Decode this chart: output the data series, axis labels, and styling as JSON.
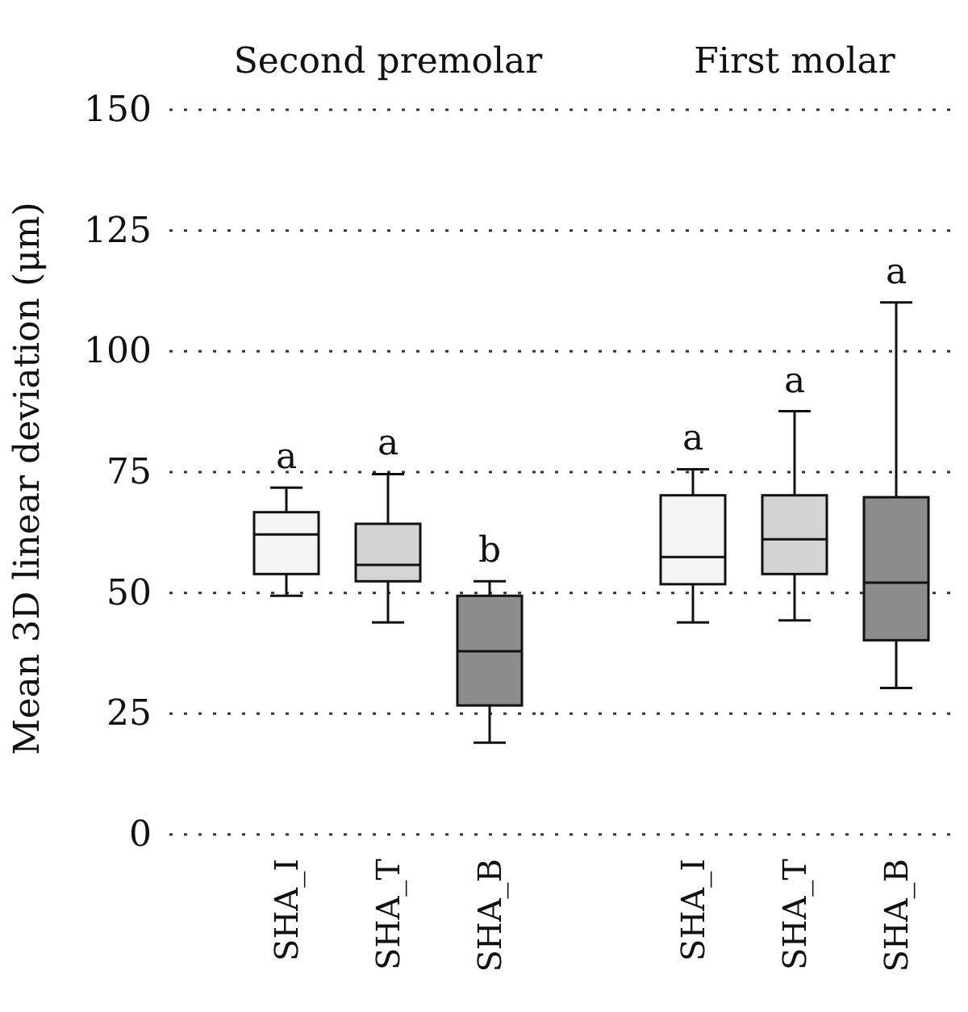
{
  "chart_data": [
    {
      "type": "box",
      "title": "Second premolar",
      "ylabel": "Mean 3D linear deviation (μm)",
      "categories": [
        "SHA_I",
        "SHA_T",
        "SHA_B"
      ],
      "boxes": [
        {
          "low": 49.4,
          "q1": 53.9,
          "median": 62.1,
          "q3": 66.7,
          "high": 71.8
        },
        {
          "low": 43.9,
          "q1": 52.4,
          "median": 55.8,
          "q3": 64.3,
          "high": 74.6
        },
        {
          "low": 19.0,
          "q1": 26.7,
          "median": 37.9,
          "q3": 49.4,
          "high": 52.4
        }
      ],
      "colors": [
        "#f4f5f7",
        "#d4d4d4",
        "#8c8c8c"
      ],
      "ylim": [
        0,
        150
      ],
      "yticks": [
        0,
        25,
        50,
        75,
        100,
        125,
        150
      ],
      "grid": "y",
      "annotations": [
        {
          "text": "a",
          "x": "SHA_I",
          "y": 71.8
        },
        {
          "text": "a",
          "x": "SHA_T",
          "y": 74.6
        },
        {
          "text": "b",
          "x": "SHA_B",
          "y": 52.4
        }
      ]
    },
    {
      "type": "box",
      "title": "First molar",
      "categories": [
        "SHA_I",
        "SHA_T",
        "SHA_B"
      ],
      "boxes": [
        {
          "low": 43.9,
          "q1": 51.8,
          "median": 57.4,
          "q3": 70.2,
          "high": 75.6
        },
        {
          "low": 44.3,
          "q1": 53.9,
          "median": 61.1,
          "q3": 70.2,
          "high": 87.6
        },
        {
          "low": 30.3,
          "q1": 40.2,
          "median": 52.1,
          "q3": 69.8,
          "high": 110.1
        }
      ],
      "colors": [
        "#f4f5f7",
        "#d4d4d4",
        "#8c8c8c"
      ],
      "ylim": [
        0,
        150
      ],
      "yticks": [
        0,
        25,
        50,
        75,
        100,
        125,
        150
      ],
      "grid": "y",
      "tick_labels": "x",
      "annotations": [
        {
          "text": "a",
          "x": "SHA_I",
          "y": 75.6
        },
        {
          "text": "a",
          "x": "SHA_T",
          "y": 87.6
        },
        {
          "text": "a",
          "x": "SHA_B",
          "y": 110.1
        }
      ]
    }
  ]
}
